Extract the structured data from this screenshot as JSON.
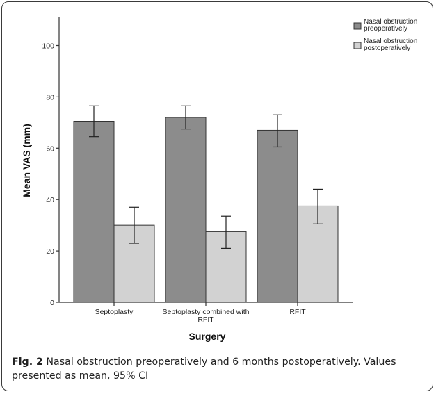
{
  "chart_data": {
    "type": "bar",
    "categories": [
      "Septoplasty",
      "Septoplasty combined with RFIT",
      "RFIT"
    ],
    "category_label_lines": [
      [
        "Septoplasty"
      ],
      [
        "Septoplasty combined with",
        "RFIT"
      ],
      [
        "RFIT"
      ]
    ],
    "series": [
      {
        "name": "Nasal obstruction preoperatively",
        "name_lines": [
          "Nasal obstruction",
          "preoperatively"
        ],
        "color": "#8c8c8c",
        "values": [
          70.5,
          72,
          67
        ],
        "ci_low": [
          64.5,
          67.5,
          60.5
        ],
        "ci_high": [
          76.5,
          76.5,
          73
        ]
      },
      {
        "name": "Nasal obstruction postoperatively",
        "name_lines": [
          "Nasal obstruction",
          "postoperatively"
        ],
        "color": "#d2d2d2",
        "values": [
          30,
          27.5,
          37.5
        ],
        "ci_low": [
          23,
          21,
          30.5
        ],
        "ci_high": [
          37,
          33.5,
          44
        ]
      }
    ],
    "xlabel": "Surgery",
    "ylabel": "Mean VAS (mm)",
    "ylim": [
      0,
      110
    ],
    "yticks": [
      0,
      20,
      40,
      60,
      80,
      100
    ],
    "grid": false,
    "legend_position": "top-right"
  },
  "caption": {
    "label": "Fig. 2",
    "text": " Nasal obstruction preoperatively and 6 months postoperatively. Values presented as mean, 95% CI"
  }
}
